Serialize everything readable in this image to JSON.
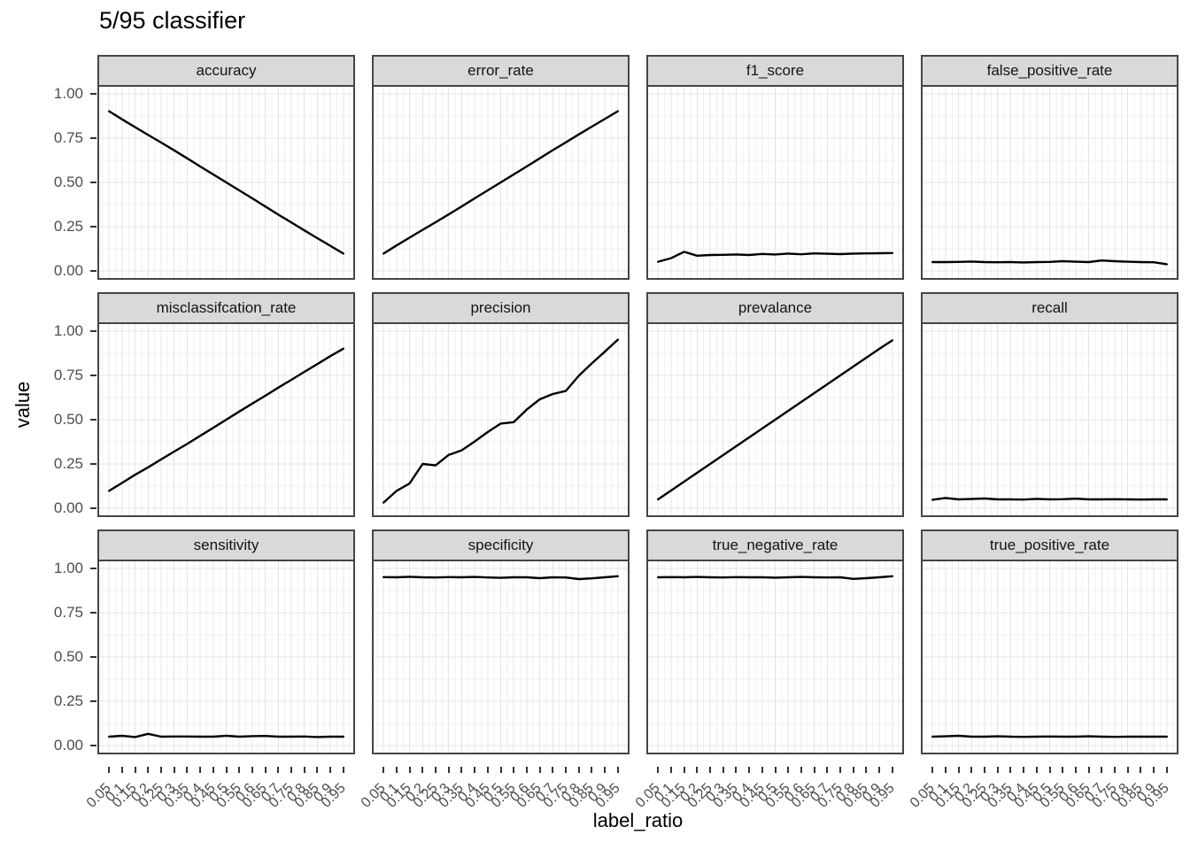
{
  "title": "5/95 classifier",
  "colors": {
    "background": "#ffffff",
    "strip_fill": "#d9d9d9",
    "panel_border": "#454545",
    "grid_major": "#e4e4e4",
    "grid_minor": "#f1f1f1",
    "line": "#000000",
    "tick_label": "#4d4d4d",
    "tick_mark": "#333333"
  },
  "chart_data": {
    "type": "line",
    "title": "5/95 classifier",
    "xlabel": "label_ratio",
    "ylabel": "value",
    "legend": "none",
    "grid": true,
    "ylim": [
      0,
      1
    ],
    "facet_layout": {
      "rows": 3,
      "cols": 4
    },
    "x": [
      0.05,
      0.1,
      0.15,
      0.2,
      0.25,
      0.3,
      0.35,
      0.4,
      0.45,
      0.5,
      0.55,
      0.6,
      0.65,
      0.7,
      0.75,
      0.8,
      0.85,
      0.9,
      0.95
    ],
    "x_tick_labels": [
      "0.05",
      "0.1",
      "0.15",
      "0.2",
      "0.25",
      "0.3",
      "0.35",
      "0.4",
      "0.45",
      "0.5",
      "0.55",
      "0.6",
      "0.65",
      "0.7",
      "0.75",
      "0.8",
      "0.85",
      "0.9",
      "0.95"
    ],
    "y_tick_values": [
      1.0,
      0.75,
      0.5,
      0.25,
      0.0
    ],
    "y_tick_labels": [
      "1.00",
      "0.75",
      "0.50",
      "0.25",
      "0.00"
    ],
    "y_minor_gridlines": [
      0.125,
      0.375,
      0.625,
      0.875
    ],
    "facets": [
      {
        "label": "accuracy",
        "values": [
          0.902,
          0.856,
          0.812,
          0.768,
          0.725,
          0.681,
          0.636,
          0.59,
          0.545,
          0.5,
          0.455,
          0.41,
          0.364,
          0.318,
          0.274,
          0.229,
          0.185,
          0.142,
          0.098
        ]
      },
      {
        "label": "error_rate",
        "values": [
          0.098,
          0.144,
          0.188,
          0.232,
          0.275,
          0.319,
          0.364,
          0.41,
          0.455,
          0.5,
          0.545,
          0.59,
          0.636,
          0.682,
          0.726,
          0.771,
          0.815,
          0.858,
          0.902
        ]
      },
      {
        "label": "f1_score",
        "values": [
          0.052,
          0.072,
          0.108,
          0.086,
          0.09,
          0.091,
          0.093,
          0.09,
          0.096,
          0.093,
          0.098,
          0.094,
          0.099,
          0.097,
          0.095,
          0.098,
          0.099,
          0.1,
          0.101
        ]
      },
      {
        "label": "false_positive_rate",
        "values": [
          0.05,
          0.05,
          0.051,
          0.053,
          0.05,
          0.049,
          0.05,
          0.048,
          0.05,
          0.051,
          0.055,
          0.052,
          0.05,
          0.059,
          0.055,
          0.052,
          0.05,
          0.049,
          0.038
        ]
      },
      {
        "label": "misclassifcation_rate",
        "values": [
          0.098,
          0.143,
          0.189,
          0.231,
          0.276,
          0.32,
          0.363,
          0.409,
          0.454,
          0.5,
          0.546,
          0.591,
          0.635,
          0.681,
          0.725,
          0.77,
          0.814,
          0.859,
          0.901
        ]
      },
      {
        "label": "precision",
        "values": [
          0.032,
          0.098,
          0.14,
          0.25,
          0.242,
          0.301,
          0.327,
          0.377,
          0.43,
          0.478,
          0.486,
          0.557,
          0.615,
          0.645,
          0.662,
          0.748,
          0.818,
          0.884,
          0.952
        ]
      },
      {
        "label": "prevalance",
        "values": [
          0.05,
          0.1,
          0.15,
          0.2,
          0.25,
          0.3,
          0.35,
          0.4,
          0.45,
          0.5,
          0.55,
          0.6,
          0.65,
          0.7,
          0.75,
          0.8,
          0.85,
          0.9,
          0.948
        ]
      },
      {
        "label": "recall",
        "values": [
          0.048,
          0.058,
          0.05,
          0.052,
          0.055,
          0.05,
          0.05,
          0.049,
          0.053,
          0.05,
          0.051,
          0.054,
          0.05,
          0.05,
          0.051,
          0.05,
          0.049,
          0.05,
          0.05
        ]
      },
      {
        "label": "sensitivity",
        "values": [
          0.05,
          0.055,
          0.048,
          0.066,
          0.05,
          0.051,
          0.051,
          0.05,
          0.05,
          0.055,
          0.05,
          0.053,
          0.054,
          0.05,
          0.05,
          0.051,
          0.048,
          0.05,
          0.05
        ]
      },
      {
        "label": "specificity",
        "values": [
          0.951,
          0.95,
          0.953,
          0.95,
          0.949,
          0.951,
          0.95,
          0.952,
          0.949,
          0.947,
          0.95,
          0.95,
          0.945,
          0.95,
          0.949,
          0.94,
          0.944,
          0.95,
          0.956
        ]
      },
      {
        "label": "true_negative_rate",
        "values": [
          0.95,
          0.951,
          0.95,
          0.952,
          0.95,
          0.949,
          0.951,
          0.95,
          0.95,
          0.948,
          0.95,
          0.952,
          0.95,
          0.949,
          0.95,
          0.941,
          0.945,
          0.95,
          0.956
        ]
      },
      {
        "label": "true_positive_rate",
        "values": [
          0.05,
          0.052,
          0.055,
          0.05,
          0.05,
          0.052,
          0.05,
          0.049,
          0.05,
          0.051,
          0.05,
          0.05,
          0.052,
          0.05,
          0.049,
          0.05,
          0.05,
          0.05,
          0.05
        ]
      }
    ]
  }
}
